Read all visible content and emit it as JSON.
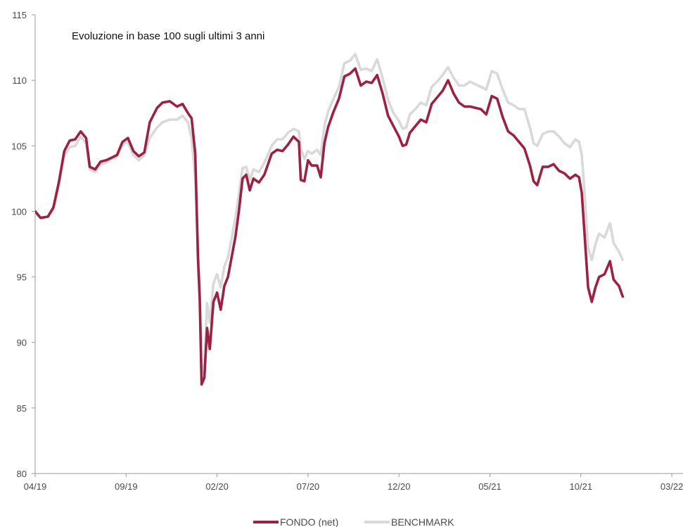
{
  "chart_data": {
    "type": "line",
    "title": "Evoluzione in base 100 sugli ultimi 3 anni",
    "xlabel": "",
    "ylabel": "",
    "ylim": [
      80,
      115
    ],
    "yticks": [
      80,
      85,
      90,
      95,
      100,
      105,
      110,
      115
    ],
    "xticks": [
      "04/19",
      "09/19",
      "02/20",
      "07/20",
      "12/20",
      "05/21",
      "10/21",
      "03/22"
    ],
    "grid": false,
    "legend_position": "bottom-center",
    "series": [
      {
        "name": "FONDO (net)",
        "color": "#9b2242",
        "points": [
          [
            0,
            100
          ],
          [
            0.3,
            99.5
          ],
          [
            0.7,
            99.6
          ],
          [
            1.0,
            100.3
          ],
          [
            1.3,
            102.2
          ],
          [
            1.6,
            104.6
          ],
          [
            1.9,
            105.4
          ],
          [
            2.2,
            105.5
          ],
          [
            2.5,
            106.1
          ],
          [
            2.8,
            105.6
          ],
          [
            3.0,
            103.4
          ],
          [
            3.3,
            103.2
          ],
          [
            3.6,
            103.8
          ],
          [
            3.9,
            103.9
          ],
          [
            4.2,
            104.1
          ],
          [
            4.5,
            104.3
          ],
          [
            4.8,
            105.3
          ],
          [
            5.1,
            105.6
          ],
          [
            5.4,
            104.6
          ],
          [
            5.7,
            104.2
          ],
          [
            6.0,
            104.5
          ],
          [
            6.3,
            106.8
          ],
          [
            6.7,
            107.9
          ],
          [
            7.0,
            108.3
          ],
          [
            7.4,
            108.4
          ],
          [
            7.8,
            108.0
          ],
          [
            8.1,
            108.2
          ],
          [
            8.4,
            107.5
          ],
          [
            8.6,
            107.1
          ],
          [
            8.8,
            104.4
          ],
          [
            8.95,
            96.5
          ],
          [
            9.05,
            93.2
          ],
          [
            9.15,
            86.8
          ],
          [
            9.3,
            87.3
          ],
          [
            9.45,
            91.1
          ],
          [
            9.6,
            89.5
          ],
          [
            9.8,
            93.1
          ],
          [
            10.0,
            93.8
          ],
          [
            10.2,
            92.5
          ],
          [
            10.4,
            94.3
          ],
          [
            10.6,
            95.0
          ],
          [
            10.8,
            96.5
          ],
          [
            11.0,
            98.0
          ],
          [
            11.2,
            100.0
          ],
          [
            11.4,
            102.5
          ],
          [
            11.6,
            102.8
          ],
          [
            11.8,
            101.6
          ],
          [
            12.0,
            102.5
          ],
          [
            12.3,
            102.2
          ],
          [
            12.6,
            102.8
          ],
          [
            13.0,
            104.4
          ],
          [
            13.3,
            104.7
          ],
          [
            13.6,
            104.6
          ],
          [
            13.9,
            105.1
          ],
          [
            14.2,
            105.7
          ],
          [
            14.5,
            105.3
          ],
          [
            14.6,
            102.4
          ],
          [
            14.8,
            102.3
          ],
          [
            15.0,
            103.9
          ],
          [
            15.2,
            103.5
          ],
          [
            15.5,
            103.5
          ],
          [
            15.7,
            102.6
          ],
          [
            15.9,
            105.2
          ],
          [
            16.1,
            106.4
          ],
          [
            16.4,
            107.6
          ],
          [
            16.7,
            108.6
          ],
          [
            17.0,
            110.3
          ],
          [
            17.3,
            110.5
          ],
          [
            17.6,
            110.9
          ],
          [
            17.9,
            109.6
          ],
          [
            18.2,
            109.9
          ],
          [
            18.5,
            109.8
          ],
          [
            18.8,
            110.4
          ],
          [
            19.1,
            109.0
          ],
          [
            19.4,
            107.3
          ],
          [
            19.7,
            106.5
          ],
          [
            20.0,
            105.7
          ],
          [
            20.2,
            105.0
          ],
          [
            20.4,
            105.1
          ],
          [
            20.6,
            106.0
          ],
          [
            20.9,
            106.5
          ],
          [
            21.2,
            107.0
          ],
          [
            21.5,
            106.8
          ],
          [
            21.8,
            108.2
          ],
          [
            22.1,
            108.7
          ],
          [
            22.4,
            109.2
          ],
          [
            22.7,
            110.0
          ],
          [
            23.0,
            109.0
          ],
          [
            23.3,
            108.3
          ],
          [
            23.6,
            108.0
          ],
          [
            23.9,
            108.0
          ],
          [
            24.2,
            107.9
          ],
          [
            24.5,
            107.8
          ],
          [
            24.8,
            107.4
          ],
          [
            25.1,
            108.8
          ],
          [
            25.4,
            108.6
          ],
          [
            25.7,
            107.2
          ],
          [
            26.0,
            106.1
          ],
          [
            26.3,
            105.8
          ],
          [
            26.6,
            105.3
          ],
          [
            26.9,
            104.8
          ],
          [
            27.2,
            103.5
          ],
          [
            27.4,
            102.3
          ],
          [
            27.6,
            102.0
          ],
          [
            27.9,
            103.4
          ],
          [
            28.2,
            103.4
          ],
          [
            28.5,
            103.6
          ],
          [
            28.8,
            103.1
          ],
          [
            29.1,
            102.9
          ],
          [
            29.4,
            102.5
          ],
          [
            29.7,
            102.8
          ],
          [
            29.9,
            102.6
          ],
          [
            30.05,
            101.4
          ],
          [
            30.2,
            98.3
          ],
          [
            30.4,
            94.2
          ],
          [
            30.6,
            93.1
          ],
          [
            30.8,
            94.2
          ],
          [
            31.0,
            95.0
          ],
          [
            31.3,
            95.2
          ],
          [
            31.6,
            96.2
          ],
          [
            31.8,
            94.8
          ],
          [
            32.1,
            94.3
          ],
          [
            32.3,
            93.5
          ]
        ]
      },
      {
        "name": "BENCHMARK",
        "color": "#d9d9d9",
        "points": [
          [
            0,
            99.9
          ],
          [
            0.3,
            99.5
          ],
          [
            0.7,
            99.6
          ],
          [
            1.0,
            100.1
          ],
          [
            1.3,
            102.0
          ],
          [
            1.6,
            104.2
          ],
          [
            1.9,
            104.9
          ],
          [
            2.2,
            105.0
          ],
          [
            2.5,
            105.7
          ],
          [
            2.8,
            105.2
          ],
          [
            3.0,
            103.2
          ],
          [
            3.3,
            103.0
          ],
          [
            3.6,
            103.6
          ],
          [
            3.9,
            103.7
          ],
          [
            4.2,
            104.0
          ],
          [
            4.5,
            104.2
          ],
          [
            4.8,
            105.1
          ],
          [
            5.1,
            105.3
          ],
          [
            5.4,
            104.3
          ],
          [
            5.7,
            103.9
          ],
          [
            6.0,
            104.3
          ],
          [
            6.3,
            105.6
          ],
          [
            6.7,
            106.4
          ],
          [
            7.0,
            106.8
          ],
          [
            7.4,
            107.0
          ],
          [
            7.8,
            107.0
          ],
          [
            8.1,
            107.3
          ],
          [
            8.4,
            106.8
          ],
          [
            8.6,
            105.6
          ],
          [
            8.8,
            102.5
          ],
          [
            8.95,
            97.5
          ],
          [
            9.05,
            94.0
          ],
          [
            9.15,
            87.6
          ],
          [
            9.3,
            88.4
          ],
          [
            9.45,
            93.0
          ],
          [
            9.6,
            91.5
          ],
          [
            9.8,
            94.5
          ],
          [
            10.0,
            95.2
          ],
          [
            10.2,
            94.2
          ],
          [
            10.4,
            95.8
          ],
          [
            10.6,
            96.5
          ],
          [
            10.8,
            97.9
          ],
          [
            11.0,
            99.5
          ],
          [
            11.2,
            101.3
          ],
          [
            11.4,
            103.3
          ],
          [
            11.6,
            103.4
          ],
          [
            11.8,
            102.4
          ],
          [
            12.0,
            103.2
          ],
          [
            12.3,
            103.0
          ],
          [
            12.6,
            103.7
          ],
          [
            13.0,
            105.0
          ],
          [
            13.3,
            105.5
          ],
          [
            13.6,
            105.5
          ],
          [
            13.9,
            106.0
          ],
          [
            14.2,
            106.3
          ],
          [
            14.5,
            106.1
          ],
          [
            14.6,
            104.8
          ],
          [
            14.8,
            104.0
          ],
          [
            15.0,
            104.6
          ],
          [
            15.2,
            104.4
          ],
          [
            15.5,
            104.7
          ],
          [
            15.7,
            104.3
          ],
          [
            15.9,
            106.5
          ],
          [
            16.1,
            107.6
          ],
          [
            16.4,
            108.6
          ],
          [
            16.7,
            109.5
          ],
          [
            17.0,
            111.3
          ],
          [
            17.3,
            111.5
          ],
          [
            17.6,
            112.0
          ],
          [
            17.9,
            110.8
          ],
          [
            18.2,
            110.9
          ],
          [
            18.5,
            110.7
          ],
          [
            18.8,
            111.6
          ],
          [
            19.1,
            110.2
          ],
          [
            19.4,
            108.5
          ],
          [
            19.7,
            107.5
          ],
          [
            20.0,
            106.9
          ],
          [
            20.2,
            106.3
          ],
          [
            20.4,
            106.4
          ],
          [
            20.6,
            107.4
          ],
          [
            20.9,
            107.8
          ],
          [
            21.2,
            108.3
          ],
          [
            21.5,
            108.1
          ],
          [
            21.8,
            109.5
          ],
          [
            22.1,
            109.9
          ],
          [
            22.4,
            110.4
          ],
          [
            22.7,
            111.0
          ],
          [
            23.0,
            110.2
          ],
          [
            23.3,
            109.6
          ],
          [
            23.6,
            109.6
          ],
          [
            23.9,
            109.9
          ],
          [
            24.2,
            109.7
          ],
          [
            24.5,
            109.5
          ],
          [
            24.8,
            109.3
          ],
          [
            25.1,
            110.7
          ],
          [
            25.4,
            110.5
          ],
          [
            25.7,
            109.3
          ],
          [
            26.0,
            108.3
          ],
          [
            26.3,
            108.1
          ],
          [
            26.6,
            107.8
          ],
          [
            26.9,
            107.8
          ],
          [
            27.2,
            106.4
          ],
          [
            27.4,
            105.2
          ],
          [
            27.6,
            105.0
          ],
          [
            27.9,
            105.9
          ],
          [
            28.2,
            106.1
          ],
          [
            28.5,
            106.1
          ],
          [
            28.8,
            105.7
          ],
          [
            29.1,
            105.2
          ],
          [
            29.4,
            104.9
          ],
          [
            29.7,
            105.5
          ],
          [
            29.9,
            105.3
          ],
          [
            30.05,
            104.3
          ],
          [
            30.2,
            101.5
          ],
          [
            30.4,
            97.2
          ],
          [
            30.6,
            96.3
          ],
          [
            30.8,
            97.5
          ],
          [
            31.0,
            98.3
          ],
          [
            31.3,
            98.0
          ],
          [
            31.6,
            99.1
          ],
          [
            31.8,
            97.6
          ],
          [
            32.1,
            96.9
          ],
          [
            32.3,
            96.3
          ]
        ]
      }
    ]
  }
}
